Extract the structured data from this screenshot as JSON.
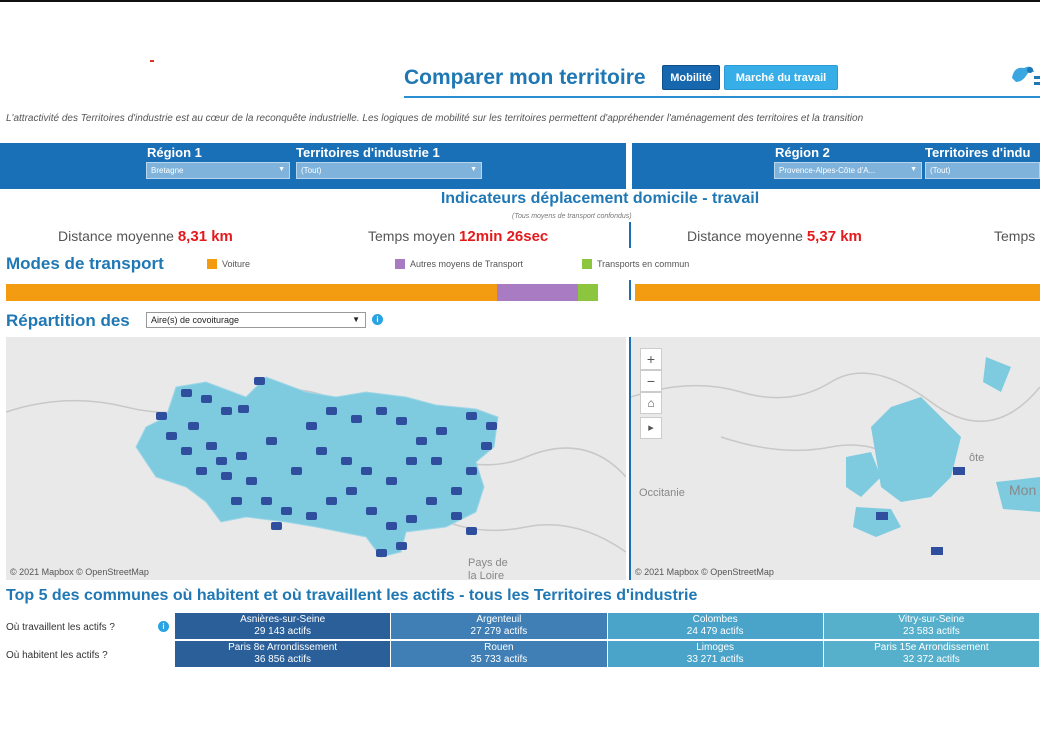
{
  "header": {
    "title": "Comparer mon territoire",
    "tabs": [
      {
        "label": "Mobilité"
      },
      {
        "label": "Marché du travail"
      }
    ],
    "intro": "L'attractivité des Territoires d'industrie est au cœur de la reconquête industrielle. Les logiques de mobilité sur les territoires permettent d'appréhender l'aménagement des territoires et la transition"
  },
  "filters": {
    "left": {
      "region_label": "Région 1",
      "region_value": "Bretagne",
      "territory_label": "Territoires d'industrie 1",
      "territory_value": "(Tout)"
    },
    "right": {
      "region_label": "Région 2",
      "region_value": "Provence-Alpes-Côte d'A...",
      "territory_label": "Territoires d'indu",
      "territory_value": "(Tout)"
    }
  },
  "indicators": {
    "title": "Indicateurs déplacement domicile - travail",
    "subtitle": "(Tous moyens de transport confondus)",
    "left": {
      "distance_label": "Distance moyenne",
      "distance_value": "8,31 km",
      "time_label": "Temps moyen",
      "time_value": "12min 26sec"
    },
    "right": {
      "distance_label": "Distance moyenne",
      "distance_value": "5,37 km",
      "time_label": "Temps"
    }
  },
  "modes": {
    "title": "Modes de transport",
    "legend": [
      {
        "label": "Voiture",
        "color": "#f39c12"
      },
      {
        "label": "Autres moyens de Transport",
        "color": "#a97bc3"
      },
      {
        "label": "Transports en commun",
        "color": "#8cc63f"
      }
    ],
    "left_shares": [
      0.83,
      0.136,
      0.034
    ]
  },
  "repartition": {
    "title": "Répartition des",
    "dropdown_value": "Aire(s) de covoiturage"
  },
  "maps": {
    "left": {
      "attribution": "© 2021 Mapbox  © OpenStreetMap",
      "labels": [
        "Pays de",
        "la Loire"
      ]
    },
    "right": {
      "attribution": "© 2021 Mapbox  © OpenStreetMap",
      "labels": [
        "Occitanie",
        "ôte",
        "Mon"
      ]
    },
    "controls": [
      "+",
      "−",
      "⌂",
      "▸"
    ]
  },
  "top5": {
    "title": "Top 5 des communes où habitent et où travaillent les actifs - tous les Territoires d'industrie",
    "rows": [
      {
        "label": "Où travaillent les actifs ?",
        "cells": [
          {
            "name": "Asnières-sur-Seine",
            "value": "29 143 actifs"
          },
          {
            "name": "Argenteuil",
            "value": "27 279 actifs"
          },
          {
            "name": "Colombes",
            "value": "24 479 actifs"
          },
          {
            "name": "Vitry-sur-Seine",
            "value": "23 583 actifs"
          }
        ]
      },
      {
        "label": "Où habitent les actifs ?",
        "cells": [
          {
            "name": "Paris 8e Arrondissement",
            "value": "36 856 actifs"
          },
          {
            "name": "Rouen",
            "value": "35 733 actifs"
          },
          {
            "name": "Limoges",
            "value": "33 271 actifs"
          },
          {
            "name": "Paris 15e Arrondissement",
            "value": "32 372 actifs"
          }
        ]
      }
    ]
  },
  "colors": {
    "accent": "#1f78b4",
    "filter_bar": "#1a70b7",
    "map_fill": "#7ecbe0",
    "cell_dark": "#2a5f99",
    "cell_mid": "#3f7fb5",
    "cell_light": "#4aa3c8",
    "cell_lightest": "#56b0cc"
  }
}
